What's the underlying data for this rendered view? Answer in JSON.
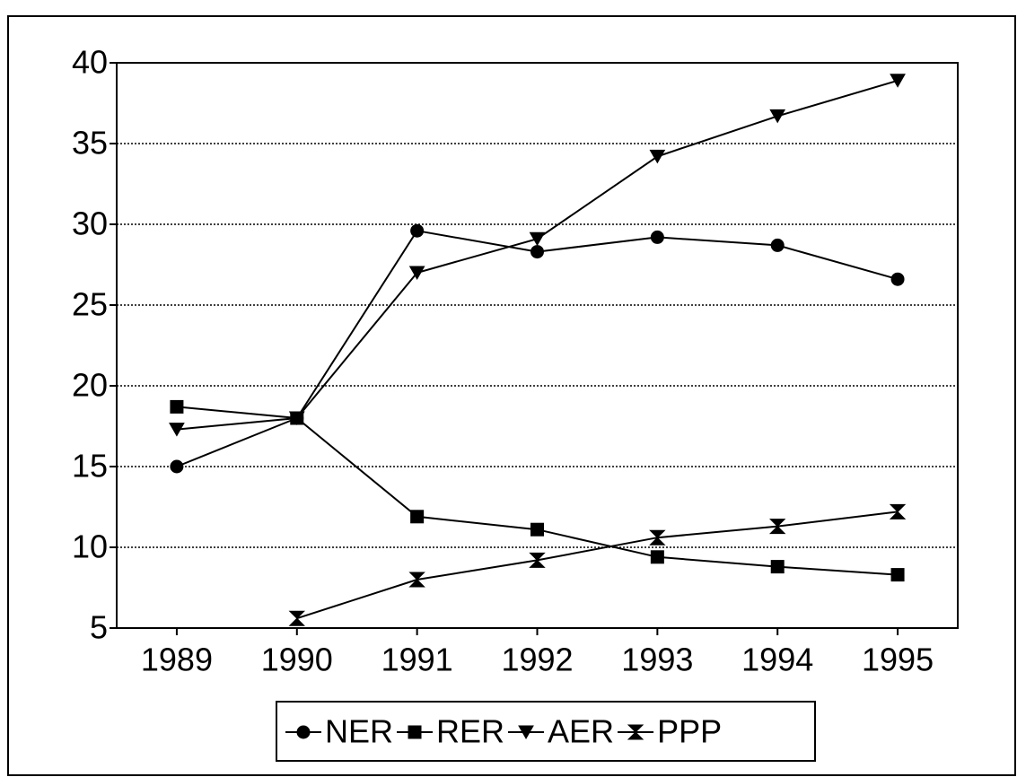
{
  "chart_data": {
    "type": "line",
    "categories": [
      "1989",
      "1990",
      "1991",
      "1992",
      "1993",
      "1994",
      "1995"
    ],
    "series": [
      {
        "name": "NER",
        "color": "#000000",
        "marker": "circle",
        "values": [
          15.0,
          18.0,
          29.6,
          28.3,
          29.2,
          28.7,
          26.6
        ]
      },
      {
        "name": "RER",
        "color": "#000000",
        "marker": "square",
        "values": [
          18.7,
          18.0,
          11.9,
          11.1,
          9.4,
          8.8,
          8.3
        ]
      },
      {
        "name": "AER",
        "color": "#000000",
        "marker": "triangle-down",
        "values": [
          17.3,
          18.0,
          27.0,
          29.1,
          34.2,
          36.7,
          38.9
        ]
      },
      {
        "name": "PPP",
        "color": "#000000",
        "marker": "hourglass",
        "values": [
          null,
          5.6,
          8.0,
          9.2,
          10.6,
          11.3,
          12.2
        ]
      }
    ],
    "ylim": [
      5,
      40
    ],
    "yticks": [
      5,
      10,
      15,
      20,
      25,
      30,
      35,
      40
    ],
    "grid": true,
    "legend": "bottom"
  }
}
